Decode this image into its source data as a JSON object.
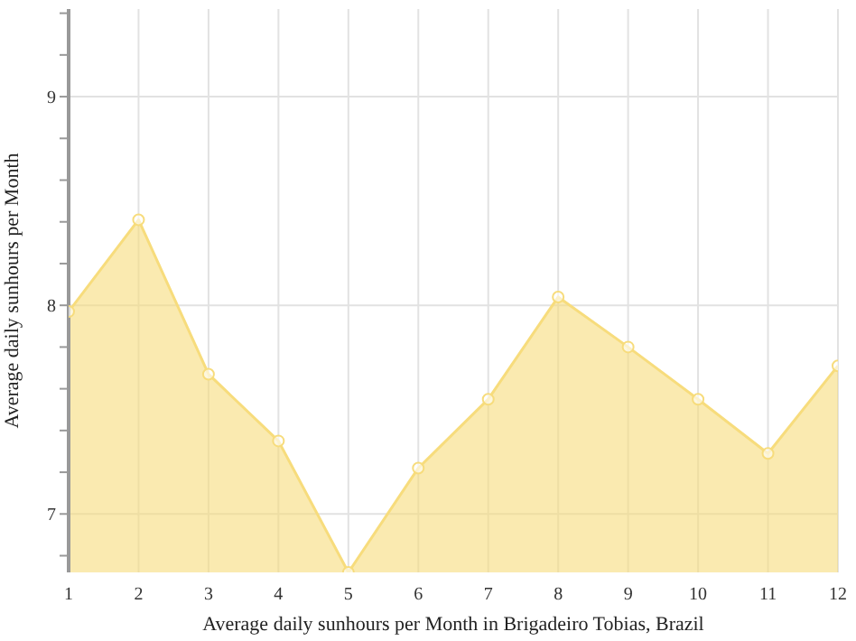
{
  "chart_data": {
    "type": "area",
    "xlabel": "Average daily sunhours per Month in Brigadeiro Tobias, Brazil",
    "ylabel": "Average daily sunhours per Month",
    "x": [
      1,
      2,
      3,
      4,
      5,
      6,
      7,
      8,
      9,
      10,
      11,
      12
    ],
    "series": [
      {
        "color": "#f7dc7c",
        "values": [
          7.97,
          8.41,
          7.67,
          7.35,
          6.72,
          7.22,
          7.55,
          8.04,
          7.8,
          7.55,
          7.29,
          7.71
        ]
      }
    ],
    "xlim": [
      1,
      12
    ],
    "xticks": [
      1,
      2,
      3,
      4,
      5,
      6,
      7,
      8,
      9,
      10,
      11,
      12
    ],
    "ylim": [
      6.72,
      9.42
    ],
    "yticks": [
      {
        "value": 6.8,
        "label": null
      },
      7,
      {
        "value": 7.2,
        "label": null
      },
      {
        "value": 7.4,
        "label": null
      },
      {
        "value": 7.6,
        "label": null
      },
      {
        "value": 7.8,
        "label": null
      },
      8,
      {
        "value": 8.2,
        "label": null
      },
      {
        "value": 8.4,
        "label": null
      },
      {
        "value": 8.6,
        "label": null
      },
      {
        "value": 8.8,
        "label": null
      },
      9,
      {
        "value": 9.2,
        "label": null
      },
      {
        "value": 9.4,
        "label": null
      }
    ],
    "grid": true,
    "marker": "circle",
    "legend": false
  }
}
